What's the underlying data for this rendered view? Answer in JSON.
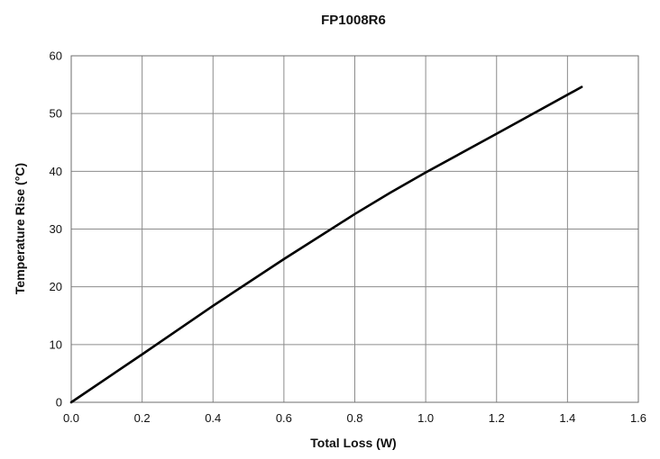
{
  "chart_data": {
    "type": "line",
    "title": "FP1008R6",
    "xlabel": "Total Loss (W)",
    "ylabel": "Temperature Rise (°C)",
    "xlim": [
      0,
      1.6
    ],
    "ylim": [
      0,
      60
    ],
    "x_ticks": [
      "0.0",
      "0.2",
      "0.4",
      "0.6",
      "0.8",
      "1.0",
      "1.2",
      "1.4",
      "1.6"
    ],
    "y_ticks": [
      "0",
      "10",
      "20",
      "30",
      "40",
      "50",
      "60"
    ],
    "grid": true,
    "legend": "none",
    "series": [
      {
        "color": "#000000",
        "x": [
          0.0,
          0.2,
          0.4,
          0.6,
          0.8,
          0.9,
          1.0,
          1.2,
          1.44
        ],
        "y": [
          0,
          8.3,
          16.7,
          24.8,
          32.6,
          36.3,
          39.8,
          46.5,
          54.6
        ]
      }
    ]
  }
}
